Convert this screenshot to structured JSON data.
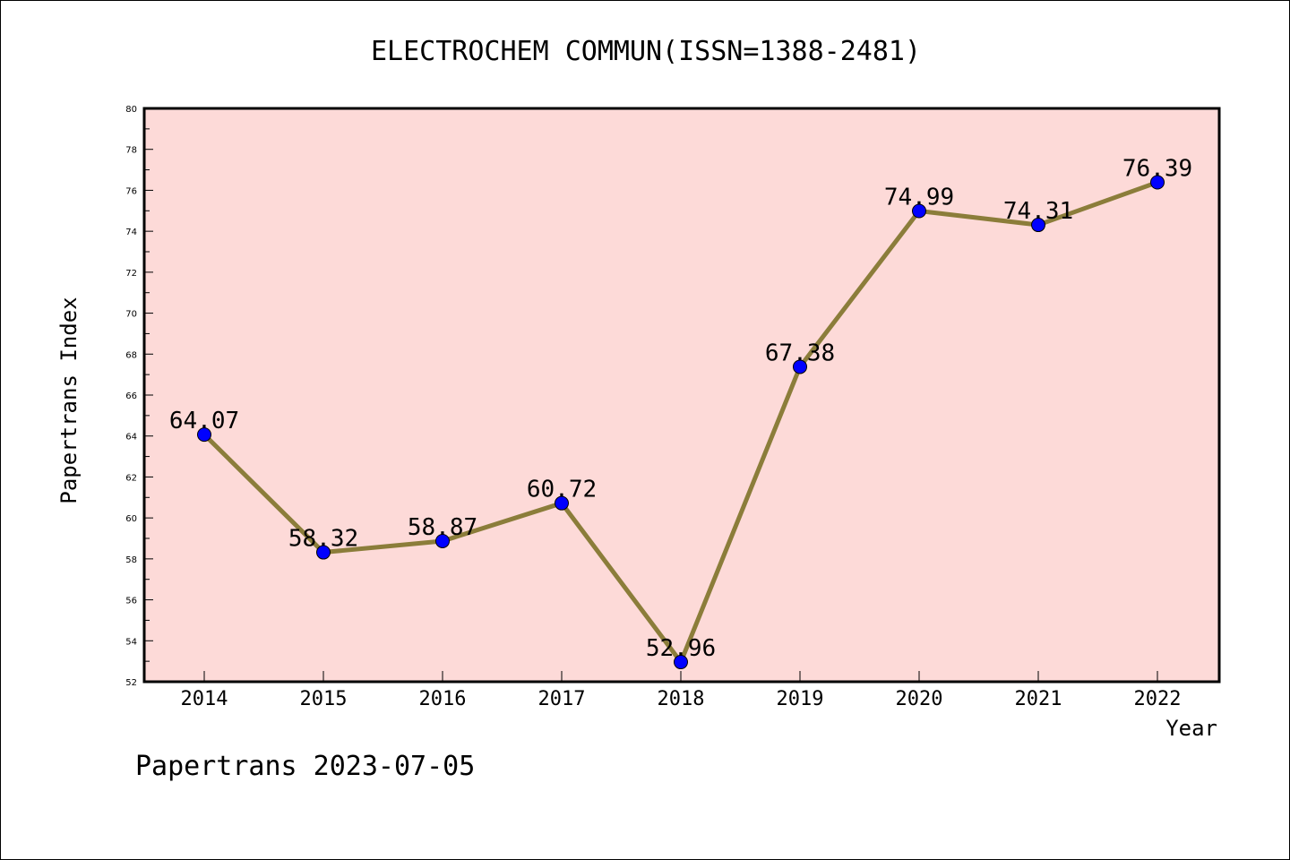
{
  "chart_data": {
    "type": "line",
    "title": "ELECTROCHEM COMMUN(ISSN=1388-2481)",
    "xlabel": "Year",
    "ylabel": "Papertrans Index",
    "categories": [
      "2014",
      "2015",
      "2016",
      "2017",
      "2018",
      "2019",
      "2020",
      "2021",
      "2022"
    ],
    "series": [
      {
        "values": [
          64.07,
          58.32,
          58.87,
          60.72,
          52.96,
          67.38,
          74.99,
          74.31,
          76.39
        ],
        "labels": [
          "64.07",
          "58.32",
          "58.87",
          "60.72",
          "52.96",
          "67.38",
          "74.99",
          "74.31",
          "76.39"
        ]
      }
    ],
    "ylim": [
      52,
      80
    ],
    "yticks": [
      "52",
      "54",
      "56",
      "58",
      "60",
      "62",
      "64",
      "66",
      "68",
      "70",
      "72",
      "74",
      "76",
      "78",
      "80"
    ],
    "grid": false,
    "legend": "none",
    "colors": {
      "plot_background": "#fddad8",
      "line": "#8b7d3a",
      "marker": "#0000ff"
    }
  },
  "footer": {
    "text": "Papertrans 2023-07-05"
  }
}
